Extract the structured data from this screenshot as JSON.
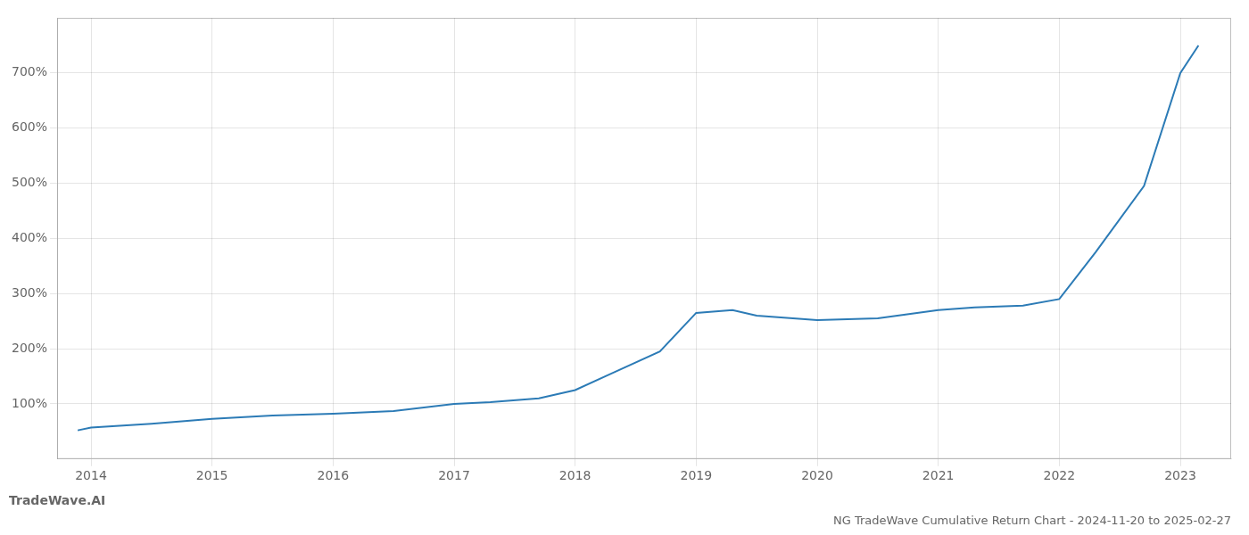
{
  "chart_data": {
    "type": "line",
    "title": "NG TradeWave Cumulative Return Chart - 2024-11-20 to 2025-02-27",
    "annotations": [
      "TradeWave.AI"
    ],
    "x": [
      2013.89,
      2014.0,
      2014.5,
      2015.0,
      2015.5,
      2016.0,
      2016.5,
      2017.0,
      2017.3,
      2017.7,
      2018.0,
      2018.3,
      2018.7,
      2019.0,
      2019.3,
      2019.5,
      2020.0,
      2020.5,
      2021.0,
      2021.3,
      2021.7,
      2022.0,
      2022.3,
      2022.7,
      2023.0,
      2023.15
    ],
    "values": [
      52,
      57,
      64,
      73,
      79,
      82,
      87,
      100,
      103,
      110,
      125,
      155,
      195,
      265,
      270,
      260,
      252,
      255,
      270,
      275,
      278,
      290,
      375,
      495,
      700,
      750
    ],
    "color": "#2c7bb6",
    "xlim": [
      2013.72,
      2023.42
    ],
    "xticks": [
      2014,
      2015,
      2016,
      2017,
      2018,
      2019,
      2020,
      2021,
      2022,
      2023
    ],
    "ylim": [
      0,
      800
    ],
    "yticks": [
      {
        "value": 100,
        "label": "100%"
      },
      {
        "value": 200,
        "label": "200%"
      },
      {
        "value": 300,
        "label": "300%"
      },
      {
        "value": 400,
        "label": "400%"
      },
      {
        "value": 500,
        "label": "500%"
      },
      {
        "value": 600,
        "label": "600%"
      },
      {
        "value": 700,
        "label": "700%"
      }
    ],
    "grid": true
  }
}
